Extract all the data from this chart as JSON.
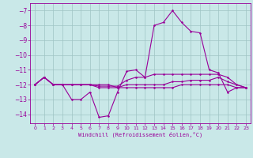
{
  "xlabel": "Windchill (Refroidissement éolien,°C)",
  "xlim": [
    -0.5,
    23.5
  ],
  "ylim": [
    -14.6,
    -6.5
  ],
  "yticks": [
    -14,
    -13,
    -12,
    -11,
    -10,
    -9,
    -8,
    -7
  ],
  "xticks": [
    0,
    1,
    2,
    3,
    4,
    5,
    6,
    7,
    8,
    9,
    10,
    11,
    12,
    13,
    14,
    15,
    16,
    17,
    18,
    19,
    20,
    21,
    22,
    23
  ],
  "bg_color": "#c9e8e8",
  "line_color": "#990099",
  "grid_color": "#9ec4c4",
  "line1_y": [
    -12.0,
    -11.5,
    -12.0,
    -12.0,
    -13.0,
    -13.0,
    -12.5,
    -14.2,
    -14.1,
    -12.5,
    -11.1,
    -11.0,
    -11.5,
    -8.0,
    -7.8,
    -7.0,
    -7.8,
    -8.4,
    -8.5,
    -11.0,
    -11.2,
    -12.5,
    -12.2,
    -12.2
  ],
  "line2_y": [
    -12.0,
    -11.5,
    -12.0,
    -12.0,
    -12.0,
    -12.0,
    -12.0,
    -12.1,
    -12.1,
    -12.1,
    -11.7,
    -11.5,
    -11.5,
    -11.3,
    -11.3,
    -11.3,
    -11.3,
    -11.3,
    -11.3,
    -11.3,
    -11.3,
    -11.5,
    -12.0,
    -12.2
  ],
  "line3_y": [
    -12.0,
    -11.5,
    -12.0,
    -12.0,
    -12.0,
    -12.0,
    -12.0,
    -12.2,
    -12.2,
    -12.2,
    -12.0,
    -12.0,
    -12.0,
    -12.0,
    -12.0,
    -11.8,
    -11.8,
    -11.7,
    -11.7,
    -11.7,
    -11.5,
    -11.8,
    -12.0,
    -12.2
  ],
  "line4_y": [
    -12.0,
    -11.5,
    -12.0,
    -12.0,
    -12.0,
    -12.0,
    -12.0,
    -12.0,
    -12.0,
    -12.2,
    -12.2,
    -12.2,
    -12.2,
    -12.2,
    -12.2,
    -12.2,
    -12.0,
    -12.0,
    -12.0,
    -12.0,
    -12.0,
    -12.0,
    -12.2,
    -12.2
  ]
}
